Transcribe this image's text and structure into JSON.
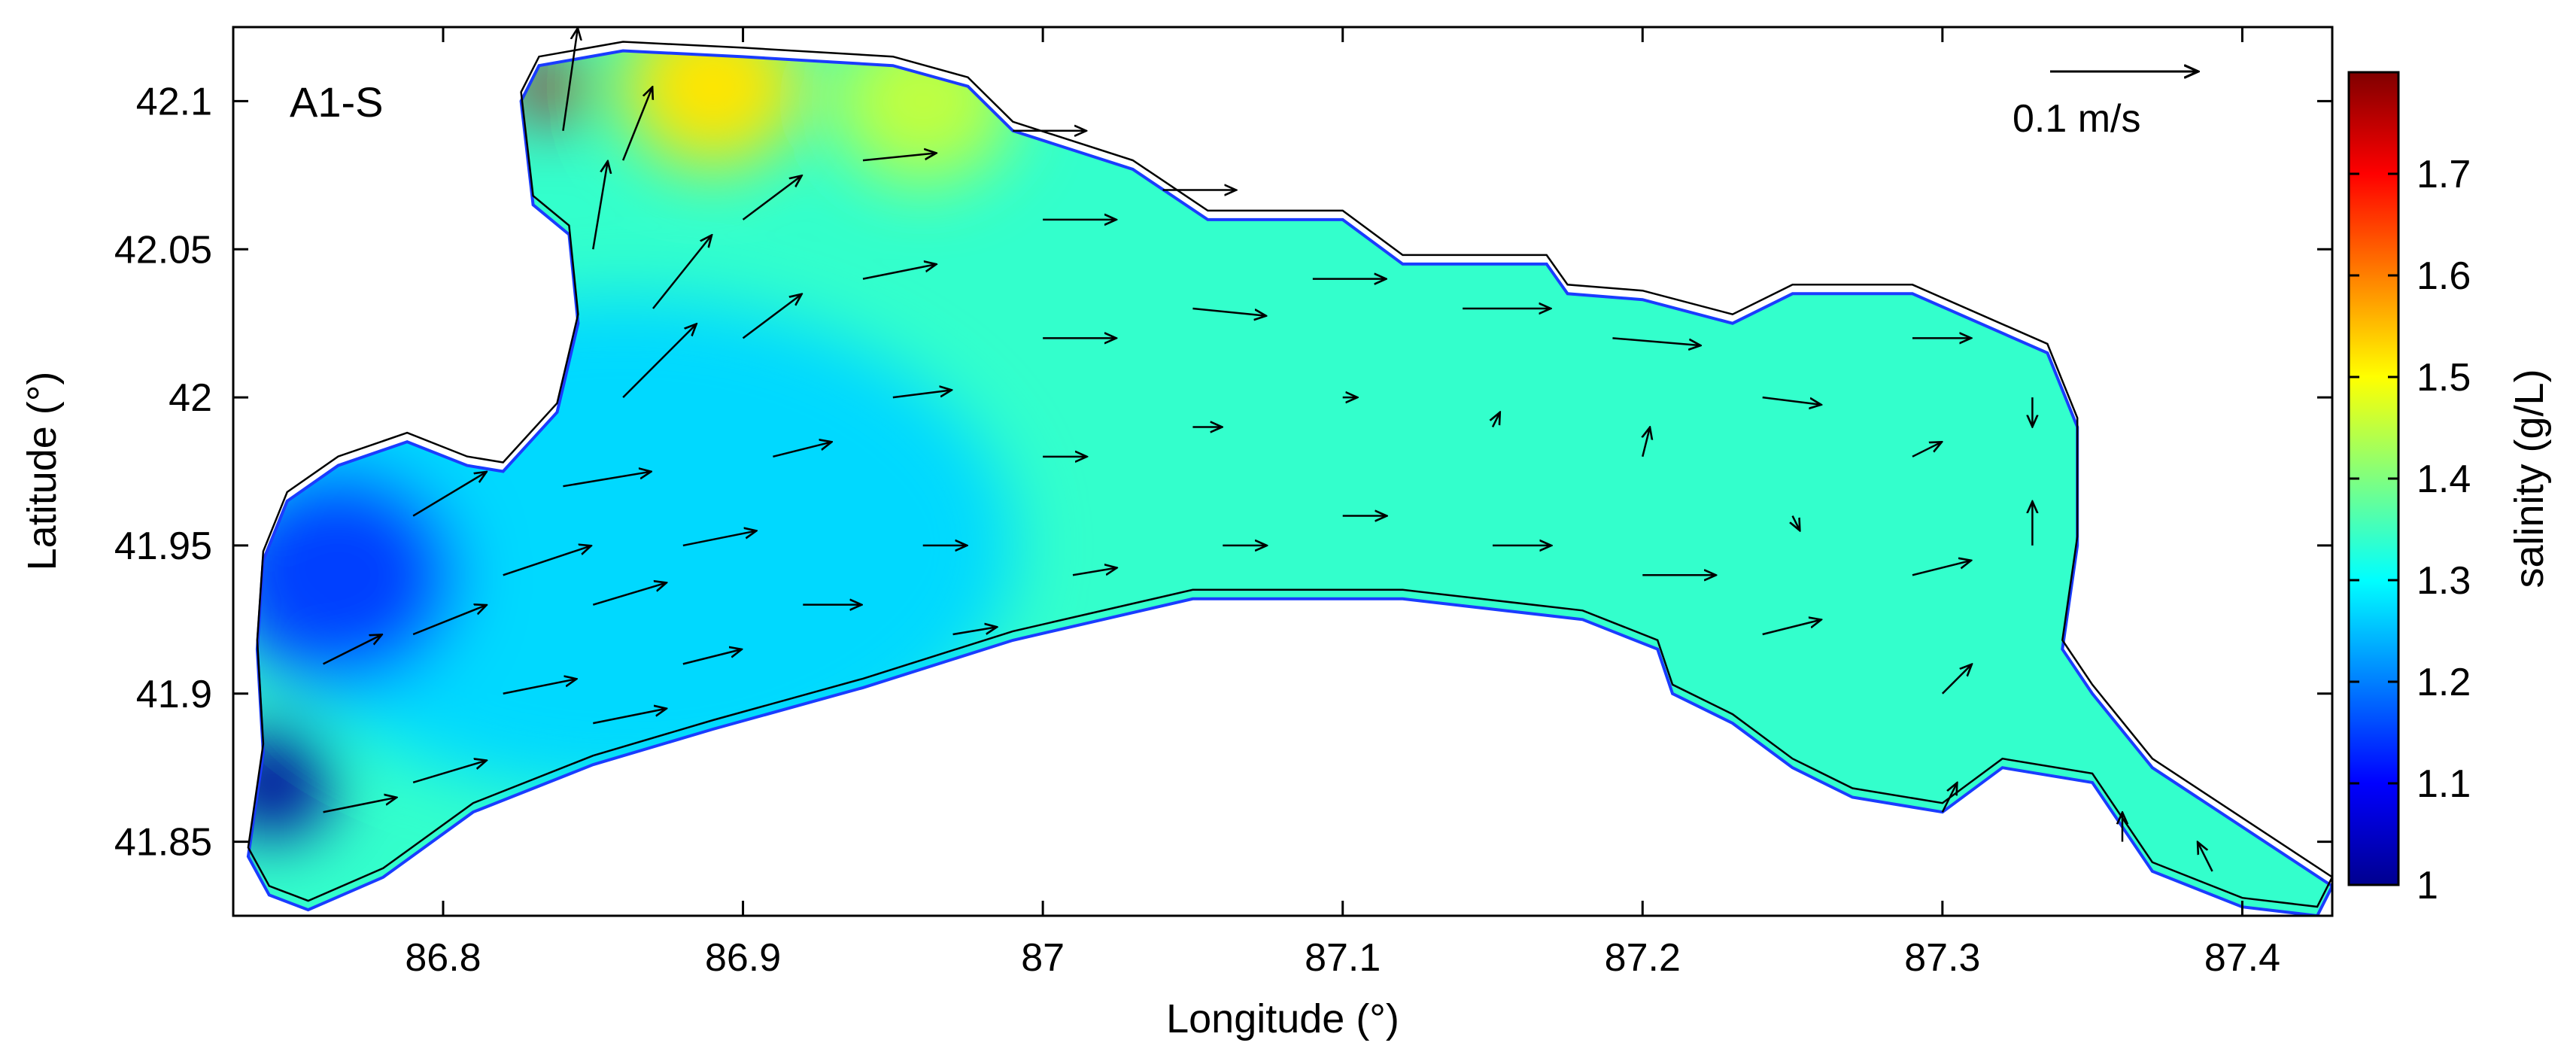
{
  "chart_data": {
    "type": "vector-field",
    "panel_label": "A1-S",
    "xlabel": "Longitude (°)",
    "ylabel": "Latitude (°)",
    "xlim": [
      86.73,
      87.43
    ],
    "ylim": [
      41.825,
      42.125
    ],
    "xticks": [
      86.8,
      86.9,
      87,
      87.1,
      87.2,
      87.3,
      87.4
    ],
    "xtick_labels": [
      "86.8",
      "86.9",
      "87",
      "87.1",
      "87.2",
      "87.3",
      "87.4"
    ],
    "yticks": [
      41.85,
      41.9,
      41.95,
      42,
      42.05,
      42.1
    ],
    "ytick_labels": [
      "41.85",
      "41.9",
      "41.95",
      "42",
      "42.05",
      "42.1"
    ],
    "colorbar": {
      "label": "salinity (g/L)",
      "range": [
        1.0,
        1.8
      ],
      "ticks": [
        1,
        1.1,
        1.2,
        1.3,
        1.4,
        1.5,
        1.6,
        1.7
      ],
      "tick_labels": [
        "1",
        "1.1",
        "1.2",
        "1.3",
        "1.4",
        "1.5",
        "1.6",
        "1.7"
      ],
      "colormap": "jet"
    },
    "reference_vector": {
      "magnitude": 0.1,
      "label": "0.1 m/s"
    },
    "lake_outline": [
      [
        86.735,
        41.845
      ],
      [
        86.74,
        41.88
      ],
      [
        86.738,
        41.915
      ],
      [
        86.74,
        41.945
      ],
      [
        86.748,
        41.965
      ],
      [
        86.765,
        41.977
      ],
      [
        86.788,
        41.985
      ],
      [
        86.808,
        41.977
      ],
      [
        86.82,
        41.975
      ],
      [
        86.838,
        41.995
      ],
      [
        86.845,
        42.025
      ],
      [
        86.842,
        42.055
      ],
      [
        86.83,
        42.065
      ],
      [
        86.826,
        42.1
      ],
      [
        86.832,
        42.112
      ],
      [
        86.86,
        42.117
      ],
      [
        86.9,
        42.115
      ],
      [
        86.95,
        42.112
      ],
      [
        86.975,
        42.105
      ],
      [
        86.99,
        42.09
      ],
      [
        87.03,
        42.077
      ],
      [
        87.055,
        42.06
      ],
      [
        87.1,
        42.06
      ],
      [
        87.12,
        42.045
      ],
      [
        87.168,
        42.045
      ],
      [
        87.175,
        42.035
      ],
      [
        87.2,
        42.033
      ],
      [
        87.23,
        42.025
      ],
      [
        87.25,
        42.035
      ],
      [
        87.29,
        42.035
      ],
      [
        87.335,
        42.015
      ],
      [
        87.345,
        41.99
      ],
      [
        87.345,
        41.95
      ],
      [
        87.34,
        41.915
      ],
      [
        87.35,
        41.9
      ],
      [
        87.37,
        41.875
      ],
      [
        87.43,
        41.835
      ],
      [
        87.425,
        41.825
      ],
      [
        87.4,
        41.828
      ],
      [
        87.37,
        41.84
      ],
      [
        87.35,
        41.87
      ],
      [
        87.32,
        41.875
      ],
      [
        87.3,
        41.86
      ],
      [
        87.27,
        41.865
      ],
      [
        87.25,
        41.875
      ],
      [
        87.23,
        41.89
      ],
      [
        87.21,
        41.9
      ],
      [
        87.205,
        41.915
      ],
      [
        87.18,
        41.925
      ],
      [
        87.12,
        41.932
      ],
      [
        87.05,
        41.932
      ],
      [
        86.99,
        41.918
      ],
      [
        86.94,
        41.902
      ],
      [
        86.89,
        41.888
      ],
      [
        86.85,
        41.876
      ],
      [
        86.81,
        41.86
      ],
      [
        86.78,
        41.838
      ],
      [
        86.755,
        41.827
      ],
      [
        86.742,
        41.832
      ]
    ],
    "salinity_hotspots": [
      {
        "lon": 86.743,
        "lat": 41.87,
        "value": 1.02,
        "radius_deg": 0.02
      },
      {
        "lon": 86.765,
        "lat": 41.94,
        "value": 1.15,
        "radius_deg": 0.04
      },
      {
        "lon": 86.835,
        "lat": 42.105,
        "value": 1.75,
        "radius_deg": 0.012
      },
      {
        "lon": 86.89,
        "lat": 42.105,
        "value": 1.52,
        "radius_deg": 0.03
      },
      {
        "lon": 86.96,
        "lat": 42.1,
        "value": 1.45,
        "radius_deg": 0.03
      }
    ],
    "velocity_arrows": [
      {
        "lon": 86.76,
        "lat": 41.86,
        "u": 0.05,
        "v": 0.01
      },
      {
        "lon": 86.79,
        "lat": 41.87,
        "u": 0.05,
        "v": 0.015
      },
      {
        "lon": 86.76,
        "lat": 41.91,
        "u": 0.04,
        "v": 0.02
      },
      {
        "lon": 86.79,
        "lat": 41.92,
        "u": 0.05,
        "v": 0.02
      },
      {
        "lon": 86.82,
        "lat": 41.9,
        "u": 0.05,
        "v": 0.01
      },
      {
        "lon": 86.82,
        "lat": 41.94,
        "u": 0.06,
        "v": 0.02
      },
      {
        "lon": 86.85,
        "lat": 41.89,
        "u": 0.05,
        "v": 0.01
      },
      {
        "lon": 86.85,
        "lat": 41.93,
        "u": 0.05,
        "v": 0.015
      },
      {
        "lon": 86.88,
        "lat": 41.91,
        "u": 0.04,
        "v": 0.01
      },
      {
        "lon": 86.88,
        "lat": 41.95,
        "u": 0.05,
        "v": 0.01
      },
      {
        "lon": 86.79,
        "lat": 41.96,
        "u": 0.05,
        "v": 0.03
      },
      {
        "lon": 86.84,
        "lat": 41.97,
        "u": 0.06,
        "v": 0.01
      },
      {
        "lon": 86.86,
        "lat": 42.0,
        "u": 0.05,
        "v": 0.05
      },
      {
        "lon": 86.87,
        "lat": 42.03,
        "u": 0.04,
        "v": 0.05
      },
      {
        "lon": 86.85,
        "lat": 42.05,
        "u": 0.01,
        "v": 0.06
      },
      {
        "lon": 86.84,
        "lat": 42.09,
        "u": 0.01,
        "v": 0.07
      },
      {
        "lon": 86.86,
        "lat": 42.08,
        "u": 0.02,
        "v": 0.05
      },
      {
        "lon": 86.9,
        "lat": 42.06,
        "u": 0.04,
        "v": 0.03
      },
      {
        "lon": 86.9,
        "lat": 42.02,
        "u": 0.04,
        "v": 0.03
      },
      {
        "lon": 86.91,
        "lat": 41.98,
        "u": 0.04,
        "v": 0.01
      },
      {
        "lon": 86.92,
        "lat": 41.93,
        "u": 0.04,
        "v": 0.0
      },
      {
        "lon": 86.94,
        "lat": 42.08,
        "u": 0.05,
        "v": 0.005
      },
      {
        "lon": 86.94,
        "lat": 42.04,
        "u": 0.05,
        "v": 0.01
      },
      {
        "lon": 86.95,
        "lat": 42.0,
        "u": 0.04,
        "v": 0.005
      },
      {
        "lon": 86.96,
        "lat": 41.95,
        "u": 0.03,
        "v": 0.0
      },
      {
        "lon": 86.97,
        "lat": 41.92,
        "u": 0.03,
        "v": 0.005
      },
      {
        "lon": 86.99,
        "lat": 42.09,
        "u": 0.05,
        "v": 0.0
      },
      {
        "lon": 87.0,
        "lat": 42.06,
        "u": 0.05,
        "v": 0.0
      },
      {
        "lon": 87.0,
        "lat": 42.02,
        "u": 0.05,
        "v": 0.0
      },
      {
        "lon": 87.0,
        "lat": 41.98,
        "u": 0.03,
        "v": 0.0
      },
      {
        "lon": 87.01,
        "lat": 41.94,
        "u": 0.03,
        "v": 0.005
      },
      {
        "lon": 87.04,
        "lat": 42.07,
        "u": 0.05,
        "v": 0.0
      },
      {
        "lon": 87.05,
        "lat": 42.03,
        "u": 0.05,
        "v": -0.005
      },
      {
        "lon": 87.05,
        "lat": 41.99,
        "u": 0.02,
        "v": 0.0
      },
      {
        "lon": 87.06,
        "lat": 41.95,
        "u": 0.03,
        "v": 0.0
      },
      {
        "lon": 87.09,
        "lat": 42.04,
        "u": 0.05,
        "v": 0.0
      },
      {
        "lon": 87.1,
        "lat": 42.0,
        "u": 0.01,
        "v": 0.0
      },
      {
        "lon": 87.1,
        "lat": 41.96,
        "u": 0.03,
        "v": 0.0
      },
      {
        "lon": 87.14,
        "lat": 42.03,
        "u": 0.06,
        "v": 0.0
      },
      {
        "lon": 87.15,
        "lat": 41.99,
        "u": 0.005,
        "v": 0.01
      },
      {
        "lon": 87.15,
        "lat": 41.95,
        "u": 0.04,
        "v": 0.0
      },
      {
        "lon": 87.19,
        "lat": 42.02,
        "u": 0.06,
        "v": -0.005
      },
      {
        "lon": 87.2,
        "lat": 41.98,
        "u": 0.005,
        "v": 0.02
      },
      {
        "lon": 87.2,
        "lat": 41.94,
        "u": 0.05,
        "v": 0.0
      },
      {
        "lon": 87.24,
        "lat": 42.0,
        "u": 0.04,
        "v": -0.005
      },
      {
        "lon": 87.25,
        "lat": 41.96,
        "u": 0.005,
        "v": -0.01
      },
      {
        "lon": 87.24,
        "lat": 41.92,
        "u": 0.04,
        "v": 0.01
      },
      {
        "lon": 87.29,
        "lat": 42.02,
        "u": 0.04,
        "v": 0.0
      },
      {
        "lon": 87.29,
        "lat": 41.98,
        "u": 0.02,
        "v": 0.01
      },
      {
        "lon": 87.29,
        "lat": 41.94,
        "u": 0.04,
        "v": 0.01
      },
      {
        "lon": 87.3,
        "lat": 41.9,
        "u": 0.02,
        "v": 0.02
      },
      {
        "lon": 87.33,
        "lat": 42.0,
        "u": 0.0,
        "v": -0.02
      },
      {
        "lon": 87.33,
        "lat": 41.95,
        "u": 0.0,
        "v": 0.03
      },
      {
        "lon": 87.3,
        "lat": 41.86,
        "u": 0.01,
        "v": 0.02
      },
      {
        "lon": 87.36,
        "lat": 41.85,
        "u": 0.0,
        "v": 0.02
      },
      {
        "lon": 87.39,
        "lat": 41.84,
        "u": -0.01,
        "v": 0.02
      }
    ]
  }
}
